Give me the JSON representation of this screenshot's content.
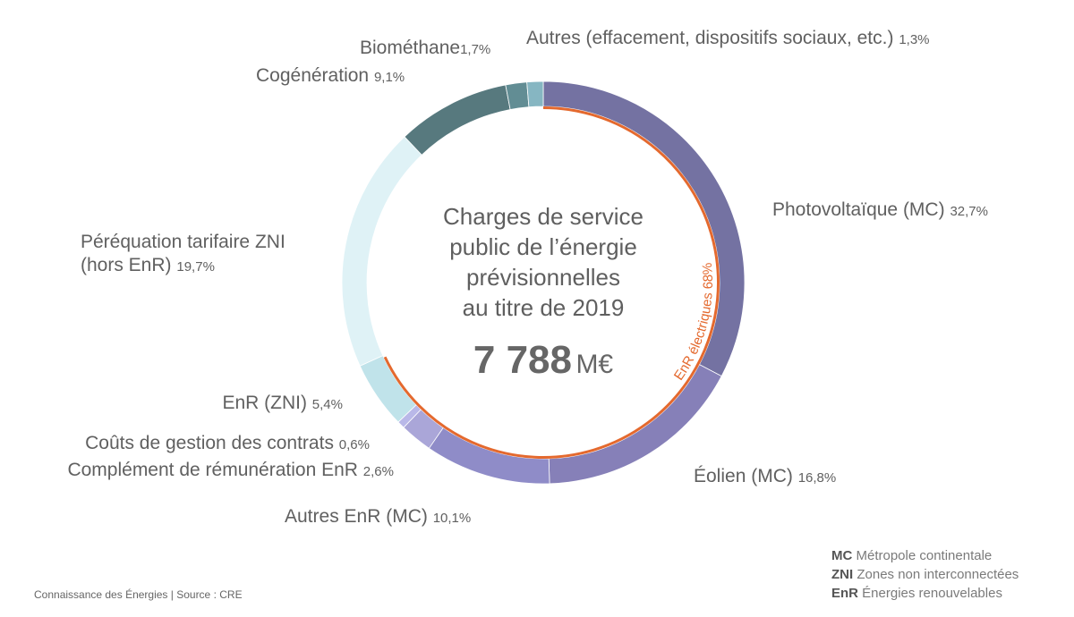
{
  "chart_data": {
    "type": "pie",
    "subtype": "donut",
    "title": "Charges de service public de l’énergie prévisionnelles au titre de 2019",
    "title_lines": [
      "Charges de service",
      "public de l’énergie",
      "prévisionnelles",
      "au titre de 2019"
    ],
    "total_value": "7 788",
    "total_unit": "M€",
    "slices": [
      {
        "label": "Photovoltaïque (MC)",
        "value": 32.7,
        "pct_text": "32,7%",
        "color": "#7472a2"
      },
      {
        "label": "Éolien (MC)",
        "value": 16.8,
        "pct_text": "16,8%",
        "color": "#8680b8"
      },
      {
        "label": "Autres EnR (MC)",
        "value": 10.1,
        "pct_text": "10,1%",
        "color": "#8f8cc8"
      },
      {
        "label": "Complément de rémunération EnR",
        "value": 2.6,
        "pct_text": "2,6%",
        "color": "#aaa6d8"
      },
      {
        "label": "Coûts de gestion des contrats",
        "value": 0.6,
        "pct_text": "0,6%",
        "color": "#b9b8e8"
      },
      {
        "label": "EnR (ZNI)",
        "value": 5.4,
        "pct_text": "5,4%",
        "color": "#c0e3ea"
      },
      {
        "label": "Péréquation tarifaire ZNI (hors EnR)",
        "label_lines": [
          "Péréquation tarifaire ZNI",
          "(hors EnR)"
        ],
        "value": 19.7,
        "pct_text": "19,7%",
        "color": "#dff2f6"
      },
      {
        "label": "Cogénération",
        "value": 9.1,
        "pct_text": "9,1%",
        "color": "#57797e"
      },
      {
        "label": "Biométhane",
        "value": 1.7,
        "pct_text": "1,7%",
        "color": "#628d94"
      },
      {
        "label": "Autres (effacement, dispositifs sociaux, etc.)",
        "value": 1.3,
        "pct_text": "1,3%",
        "color": "#86b6c2"
      }
    ],
    "annotation": {
      "text": "EnR électriques 68%",
      "value": 68,
      "color": "#e4692e"
    }
  },
  "legend": [
    {
      "abbr": "MC",
      "meaning": "Métropole continentale"
    },
    {
      "abbr": "ZNI",
      "meaning": "Zones non interconnectées"
    },
    {
      "abbr": "EnR",
      "meaning": "Énergies renouvelables"
    }
  ],
  "footer": "Connaissance des Énergies | Source : CRE"
}
